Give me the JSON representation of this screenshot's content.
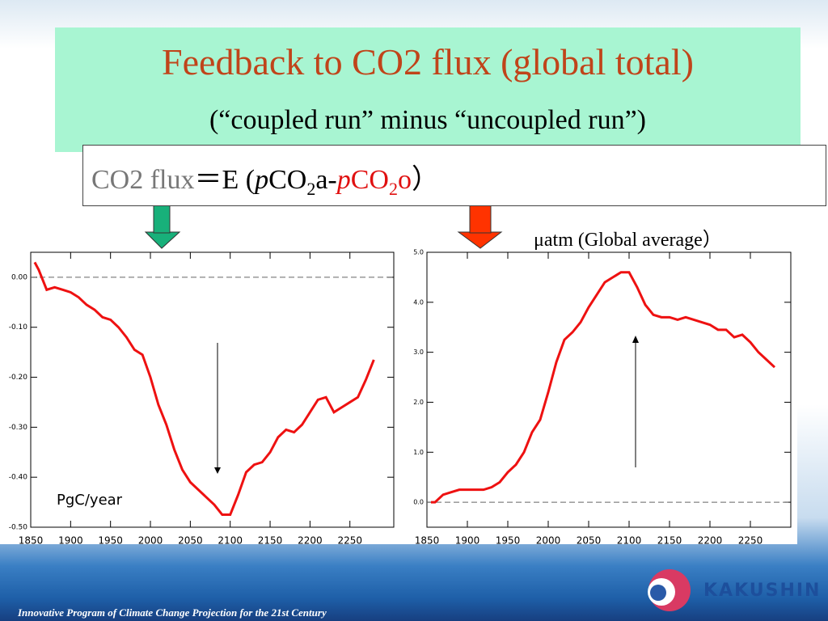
{
  "slide": {
    "title": "Feedback to CO2 flux (global total)",
    "subtitle": "(“coupled run” minus “uncoupled run”)",
    "formula": [
      "CO2 flux",
      "＝E (",
      "p",
      "CO",
      "2",
      "a-",
      "p",
      "CO",
      "2",
      "o",
      "）"
    ],
    "unit_right": "μatm (Global average）",
    "unit_left": "PgC/year",
    "footer": "Innovative Program of Climate Change Projection for the 21st Century",
    "logo": "KAKUSHIN"
  },
  "chart_data": [
    {
      "type": "line",
      "x": [
        1855,
        1860,
        1870,
        1880,
        1890,
        1900,
        1910,
        1920,
        1930,
        1940,
        1950,
        1960,
        1970,
        1980,
        1990,
        2000,
        2010,
        2020,
        2030,
        2040,
        2050,
        2060,
        2070,
        2080,
        2090,
        2100,
        2110,
        2120,
        2130,
        2140,
        2150,
        2160,
        2170,
        2180,
        2190,
        2200,
        2210,
        2220,
        2230,
        2240,
        2250,
        2260,
        2270,
        2280
      ],
      "series": [
        {
          "color": "#ee1111",
          "values": [
            0.03,
            0.015,
            -0.025,
            -0.02,
            -0.025,
            -0.03,
            -0.04,
            -0.055,
            -0.065,
            -0.08,
            -0.085,
            -0.1,
            -0.12,
            -0.145,
            -0.155,
            -0.2,
            -0.255,
            -0.295,
            -0.345,
            -0.385,
            -0.41,
            -0.425,
            -0.44,
            -0.455,
            -0.475,
            -0.475,
            -0.435,
            -0.39,
            -0.375,
            -0.37,
            -0.35,
            -0.32,
            -0.305,
            -0.31,
            -0.295,
            -0.27,
            -0.245,
            -0.24,
            -0.27,
            -0.26,
            -0.25,
            -0.24,
            -0.205,
            -0.165
          ]
        }
      ],
      "xlim": [
        1850,
        2305
      ],
      "xticks": [
        1850,
        1900,
        1950,
        2000,
        2050,
        2100,
        2150,
        2200,
        2250
      ],
      "ylim": [
        -0.5,
        0.05
      ],
      "yticks": [
        {
          "value": 0,
          "label": "0.00"
        },
        {
          "value": -0.1,
          "label": "-0.10"
        },
        {
          "value": -0.2,
          "label": "-0.20"
        },
        {
          "value": -0.3,
          "label": "-0.30"
        },
        {
          "value": -0.4,
          "label": "-0.40"
        },
        {
          "value": -0.5,
          "label": "-0.50"
        }
      ],
      "reference_line": 0
    },
    {
      "type": "line",
      "x": [
        1855,
        1860,
        1870,
        1880,
        1890,
        1900,
        1910,
        1920,
        1930,
        1940,
        1950,
        1960,
        1970,
        1980,
        1990,
        2000,
        2010,
        2020,
        2030,
        2040,
        2050,
        2060,
        2070,
        2080,
        2090,
        2100,
        2110,
        2120,
        2130,
        2140,
        2150,
        2160,
        2170,
        2180,
        2190,
        2200,
        2210,
        2220,
        2230,
        2240,
        2250,
        2260,
        2270,
        2280
      ],
      "series": [
        {
          "color": "#ee1111",
          "values": [
            0,
            0,
            0.15,
            0.2,
            0.25,
            0.25,
            0.25,
            0.25,
            0.3,
            0.4,
            0.6,
            0.75,
            1.0,
            1.4,
            1.65,
            2.2,
            2.8,
            3.25,
            3.4,
            3.6,
            3.9,
            4.15,
            4.4,
            4.5,
            4.6,
            4.6,
            4.3,
            3.95,
            3.75,
            3.7,
            3.7,
            3.65,
            3.7,
            3.65,
            3.6,
            3.55,
            3.45,
            3.45,
            3.3,
            3.35,
            3.2,
            3.0,
            2.85,
            2.7
          ]
        }
      ],
      "xlim": [
        1850,
        2300
      ],
      "xticks": [
        1850,
        1900,
        1950,
        2000,
        2050,
        2100,
        2150,
        2200,
        2250
      ],
      "ylim": [
        -0.5,
        5.0
      ],
      "yticks": [
        {
          "value": 5,
          "label": "5.0"
        },
        {
          "value": 4,
          "label": "4.0"
        },
        {
          "value": 3,
          "label": "3.0"
        },
        {
          "value": 2,
          "label": "2.0"
        },
        {
          "value": 1,
          "label": "1.0"
        },
        {
          "value": 0,
          "label": "0.0"
        }
      ],
      "reference_line": 0
    }
  ]
}
